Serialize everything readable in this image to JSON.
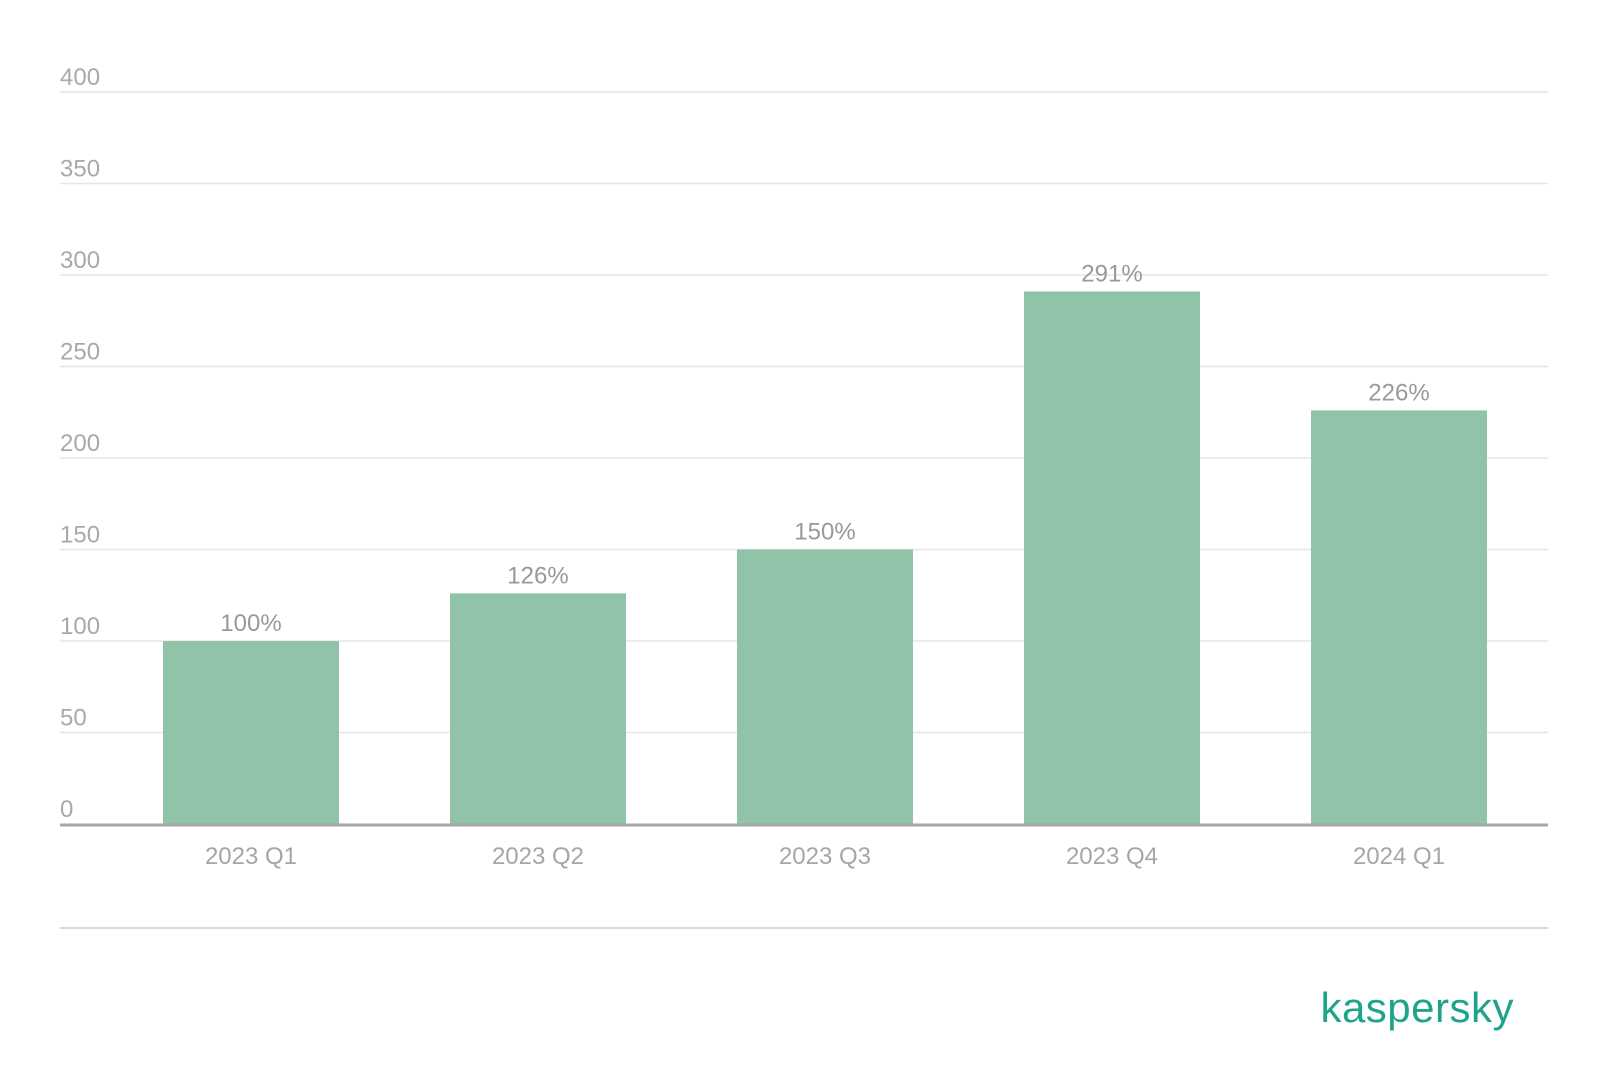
{
  "chart_data": {
    "type": "bar",
    "categories": [
      "2023 Q1",
      "2023 Q2",
      "2023 Q3",
      "2023 Q4",
      "2024 Q1"
    ],
    "values": [
      100,
      126,
      150,
      291,
      226
    ],
    "data_labels": [
      "100%",
      "126%",
      "150%",
      "291%",
      "226%"
    ],
    "title": "",
    "xlabel": "",
    "ylabel": "",
    "ylim": [
      0,
      400
    ],
    "yticks": [
      0,
      50,
      100,
      150,
      200,
      250,
      300,
      350,
      400
    ],
    "grid": true,
    "legend": "none",
    "bar_color": "#90c3a8",
    "grid_color": "#e6e6e6",
    "axis_color": "#a6a6a6"
  },
  "brand": {
    "logo_text": "kaspersky",
    "color": "#1ea48a"
  }
}
